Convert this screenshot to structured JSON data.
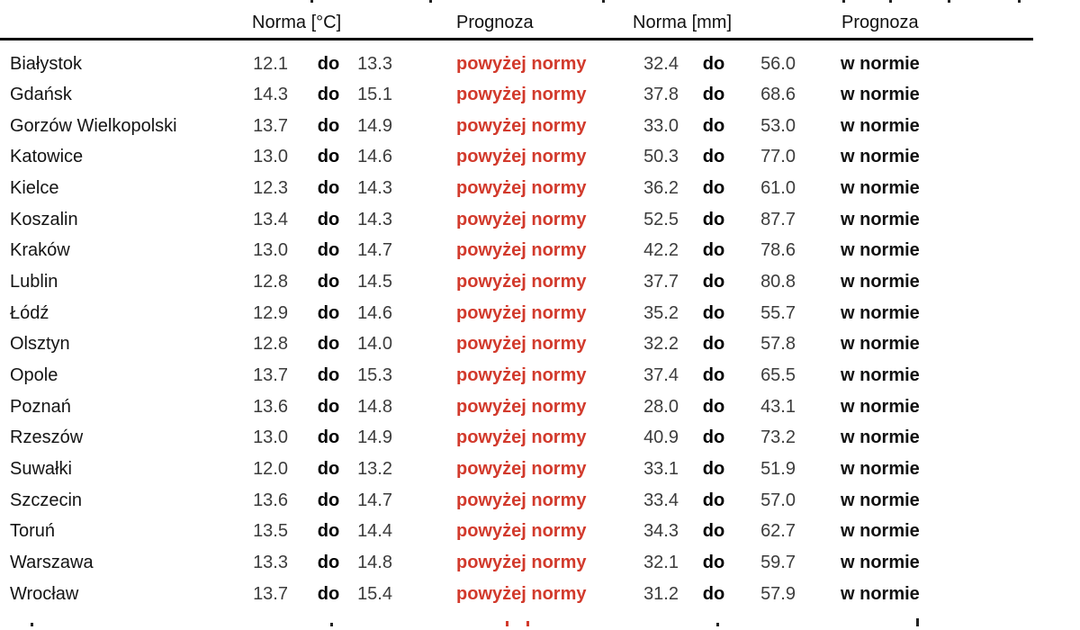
{
  "table": {
    "headers": {
      "norma_temp": "Norma [°C]",
      "prognoza_temp": "Prognoza",
      "norma_precip": "Norma [mm]",
      "prognoza_precip": "Prognoza"
    },
    "do_label": "do",
    "colors": {
      "above_norm_red": "#d23a2c",
      "number_gray": "#3c3c3c",
      "text_black": "#111111"
    },
    "rows": [
      {
        "city": "Białystok",
        "t_min": "12.1",
        "t_max": "13.3",
        "t_forecast": "powyżej normy",
        "p_min": "32.4",
        "p_max": "56.0",
        "p_forecast": "w normie"
      },
      {
        "city": "Gdańsk",
        "t_min": "14.3",
        "t_max": "15.1",
        "t_forecast": "powyżej normy",
        "p_min": "37.8",
        "p_max": "68.6",
        "p_forecast": "w normie"
      },
      {
        "city": "Gorzów Wielkopolski",
        "t_min": "13.7",
        "t_max": "14.9",
        "t_forecast": "powyżej normy",
        "p_min": "33.0",
        "p_max": "53.0",
        "p_forecast": "w normie"
      },
      {
        "city": "Katowice",
        "t_min": "13.0",
        "t_max": "14.6",
        "t_forecast": "powyżej normy",
        "p_min": "50.3",
        "p_max": "77.0",
        "p_forecast": "w normie"
      },
      {
        "city": "Kielce",
        "t_min": "12.3",
        "t_max": "14.3",
        "t_forecast": "powyżej normy",
        "p_min": "36.2",
        "p_max": "61.0",
        "p_forecast": "w normie"
      },
      {
        "city": "Koszalin",
        "t_min": "13.4",
        "t_max": "14.3",
        "t_forecast": "powyżej normy",
        "p_min": "52.5",
        "p_max": "87.7",
        "p_forecast": "w normie"
      },
      {
        "city": "Kraków",
        "t_min": "13.0",
        "t_max": "14.7",
        "t_forecast": "powyżej normy",
        "p_min": "42.2",
        "p_max": "78.6",
        "p_forecast": "w normie"
      },
      {
        "city": "Lublin",
        "t_min": "12.8",
        "t_max": "14.5",
        "t_forecast": "powyżej normy",
        "p_min": "37.7",
        "p_max": "80.8",
        "p_forecast": "w normie"
      },
      {
        "city": "Łódź",
        "t_min": "12.9",
        "t_max": "14.6",
        "t_forecast": "powyżej normy",
        "p_min": "35.2",
        "p_max": "55.7",
        "p_forecast": "w normie"
      },
      {
        "city": "Olsztyn",
        "t_min": "12.8",
        "t_max": "14.0",
        "t_forecast": "powyżej normy",
        "p_min": "32.2",
        "p_max": "57.8",
        "p_forecast": "w normie"
      },
      {
        "city": "Opole",
        "t_min": "13.7",
        "t_max": "15.3",
        "t_forecast": "powyżej normy",
        "p_min": "37.4",
        "p_max": "65.5",
        "p_forecast": "w normie"
      },
      {
        "city": "Poznań",
        "t_min": "13.6",
        "t_max": "14.8",
        "t_forecast": "powyżej normy",
        "p_min": "28.0",
        "p_max": "43.1",
        "p_forecast": "w normie"
      },
      {
        "city": "Rzeszów",
        "t_min": "13.0",
        "t_max": "14.9",
        "t_forecast": "powyżej normy",
        "p_min": "40.9",
        "p_max": "73.2",
        "p_forecast": "w normie"
      },
      {
        "city": "Suwałki",
        "t_min": "12.0",
        "t_max": "13.2",
        "t_forecast": "powyżej normy",
        "p_min": "33.1",
        "p_max": "51.9",
        "p_forecast": "w normie"
      },
      {
        "city": "Szczecin",
        "t_min": "13.6",
        "t_max": "14.7",
        "t_forecast": "powyżej normy",
        "p_min": "33.4",
        "p_max": "57.0",
        "p_forecast": "w normie"
      },
      {
        "city": "Toruń",
        "t_min": "13.5",
        "t_max": "14.4",
        "t_forecast": "powyżej normy",
        "p_min": "34.3",
        "p_max": "62.7",
        "p_forecast": "w normie"
      },
      {
        "city": "Warszawa",
        "t_min": "13.3",
        "t_max": "14.8",
        "t_forecast": "powyżej normy",
        "p_min": "32.1",
        "p_max": "59.7",
        "p_forecast": "w normie"
      },
      {
        "city": "Wrocław",
        "t_min": "13.7",
        "t_max": "15.4",
        "t_forecast": "powyżej normy",
        "p_min": "31.2",
        "p_max": "57.9",
        "p_forecast": "w normie"
      }
    ]
  }
}
